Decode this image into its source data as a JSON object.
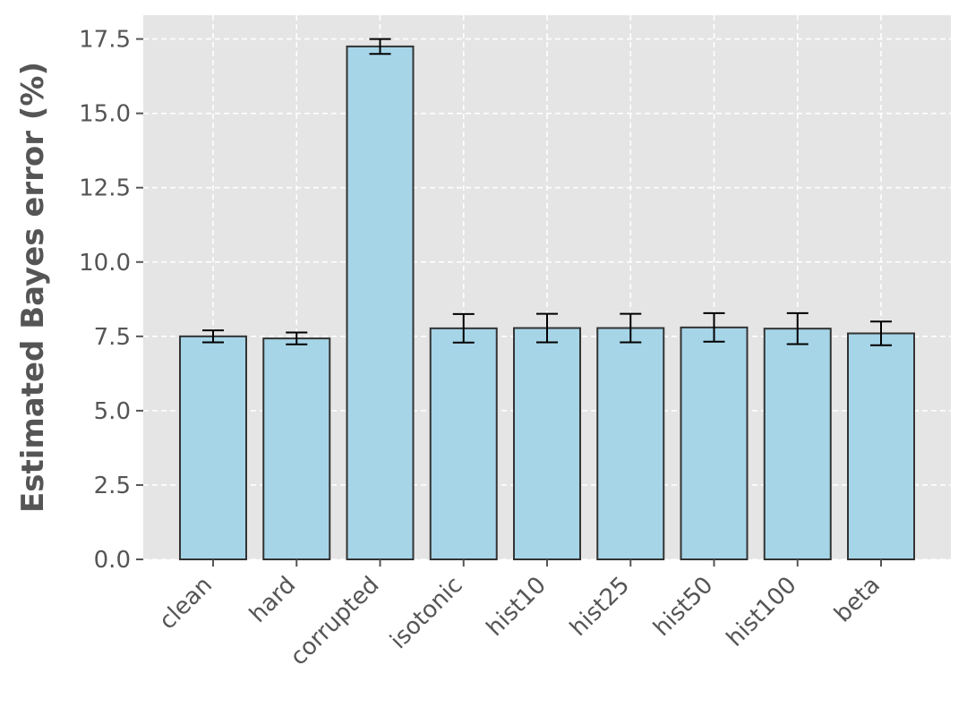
{
  "chart_data": {
    "type": "bar",
    "title": "",
    "xlabel": "",
    "ylabel": "Estimated Bayes error (%)",
    "categories": [
      "clean",
      "hard",
      "corrupted",
      "isotonic",
      "hist10",
      "hist25",
      "hist50",
      "hist100",
      "beta"
    ],
    "values": [
      7.5,
      7.43,
      17.25,
      7.77,
      7.78,
      7.78,
      7.8,
      7.76,
      7.6
    ],
    "errors": [
      0.2,
      0.2,
      0.25,
      0.48,
      0.48,
      0.48,
      0.48,
      0.52,
      0.4
    ],
    "ylim": [
      0,
      18.3
    ],
    "yticks": [
      "0.0",
      "2.5",
      "5.0",
      "7.5",
      "10.0",
      "12.5",
      "15.0",
      "17.5"
    ],
    "grid": true,
    "bar_color": "#a6d5e8",
    "bar_edge_color": "#333333",
    "background_color": "#e5e5e5"
  }
}
